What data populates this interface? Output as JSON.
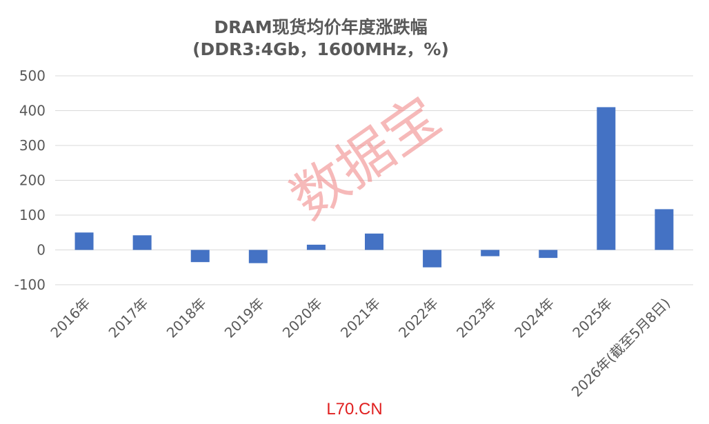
{
  "chart_data": {
    "type": "bar",
    "title": "DRAM现货均价年度涨跌幅",
    "subtitle": "(DDR3:4Gb，1600MHz，%)",
    "categories": [
      "2016年",
      "2017年",
      "2018年",
      "2019年",
      "2020年",
      "2021年",
      "2022年",
      "2023年",
      "2024年",
      "2025年",
      "2026年(截至5月8日)"
    ],
    "values": [
      50,
      42,
      -35,
      -38,
      15,
      47,
      -50,
      -18,
      -23,
      410,
      117
    ],
    "ylim": [
      -100,
      500
    ],
    "yticks": [
      -100,
      0,
      100,
      200,
      300,
      400,
      500
    ],
    "grid": true,
    "bar_color": "#4472C4",
    "watermark": "数据宝"
  },
  "footer": {
    "text": "L70.CN"
  }
}
